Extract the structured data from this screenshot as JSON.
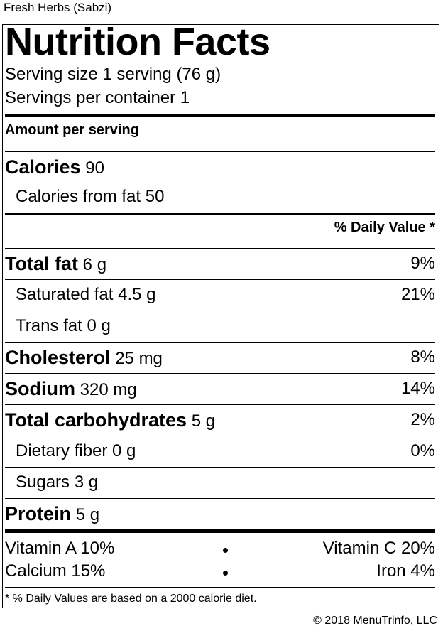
{
  "product_name": "Fresh Herbs (Sabzi)",
  "title": "Nutrition Facts",
  "serving_size": "Serving size 1 serving (76 g)",
  "servings_per_container": "Servings per container 1",
  "amount_per_serving": "Amount per serving",
  "calories": {
    "label": "Calories",
    "value": "90"
  },
  "calories_from_fat": "Calories from fat 50",
  "daily_value_header": "% Daily Value *",
  "nutrients": {
    "total_fat": {
      "label": "Total fat",
      "amount": "6 g",
      "dv": "9%"
    },
    "saturated_fat": {
      "label": "Saturated fat 4.5 g",
      "dv": "21%"
    },
    "trans_fat": {
      "label": "Trans fat 0 g"
    },
    "cholesterol": {
      "label": "Cholesterol",
      "amount": "25 mg",
      "dv": "8%"
    },
    "sodium": {
      "label": "Sodium",
      "amount": "320 mg",
      "dv": "14%"
    },
    "total_carbs": {
      "label": "Total carbohydrates",
      "amount": "5 g",
      "dv": "2%"
    },
    "dietary_fiber": {
      "label": "Dietary fiber 0 g",
      "dv": "0%"
    },
    "sugars": {
      "label": "Sugars 3 g"
    },
    "protein": {
      "label": "Protein",
      "amount": "5 g"
    }
  },
  "vitamins": {
    "vitamin_a": "Vitamin A 10%",
    "vitamin_c": "Vitamin C 20%",
    "calcium": "Calcium 15%",
    "iron": "Iron 4%"
  },
  "footnote": "* % Daily Values are based on a 2000 calorie diet.",
  "copyright": "© 2018 MenuTrinfo, LLC"
}
